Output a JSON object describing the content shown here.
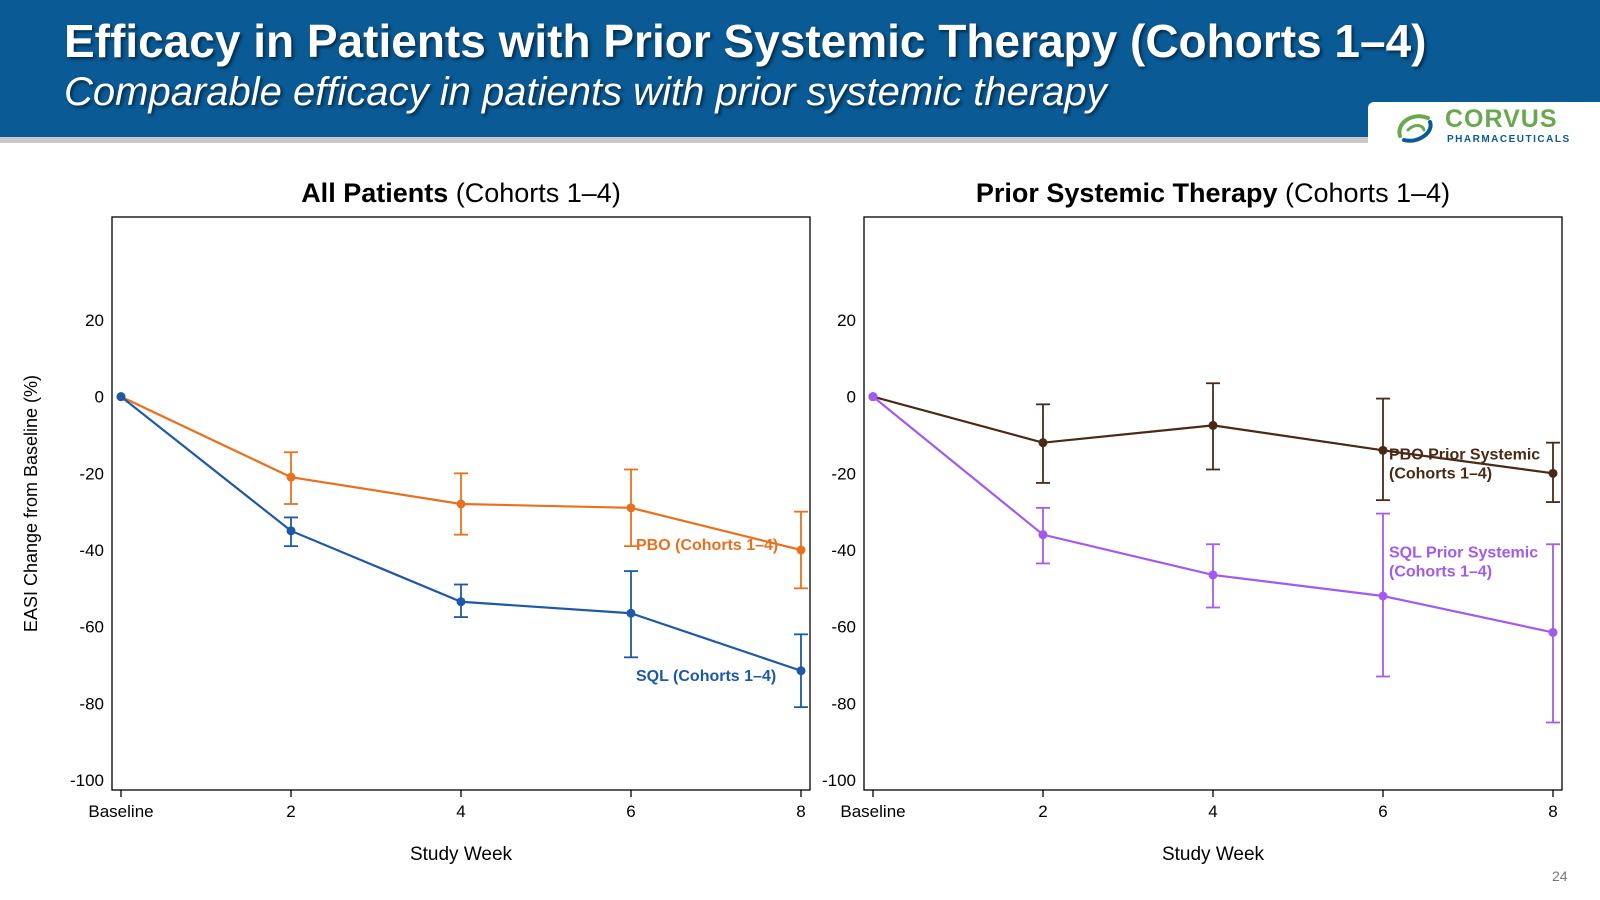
{
  "slide": {
    "title": "Efficacy in Patients with Prior Systemic Therapy (Cohorts 1–4)",
    "subtitle": "Comparable efficacy in patients with prior systemic therapy",
    "page_number": "24"
  },
  "logo": {
    "name": "CORVUS",
    "tagline": "PHARMACEUTICALS",
    "icon": "corvus-swirl-icon"
  },
  "chart_data": [
    {
      "type": "line",
      "title_bold": "All Patients",
      "title_rest": " (Cohorts 1–4)",
      "xlabel": "Study Week",
      "ylabel": "EASI Change from Baseline (%)",
      "categories": [
        "Baseline",
        "2",
        "4",
        "6",
        "8"
      ],
      "x": [
        0,
        2,
        4,
        6,
        8
      ],
      "ylim": [
        -100,
        20
      ],
      "yticks": [
        20,
        0,
        -20,
        -40,
        -60,
        -80,
        -100
      ],
      "grid": false,
      "series": [
        {
          "name": "PBO (Cohorts 1–4)",
          "color": "#e8711f",
          "values": [
            0,
            -21,
            -28,
            -29,
            -40
          ],
          "error_low": [
            0,
            -28,
            -36,
            -39,
            -50
          ],
          "error_high": [
            0,
            -14.5,
            -20,
            -19,
            -30
          ]
        },
        {
          "name": "SQL (Cohorts 1–4)",
          "color": "#1d59a6",
          "values": [
            0,
            -35,
            -53.5,
            -56.5,
            -71.5
          ],
          "error_low": [
            0,
            -39,
            -57.5,
            -68,
            -81
          ],
          "error_high": [
            0,
            -31.5,
            -49,
            -45.5,
            -62
          ]
        }
      ]
    },
    {
      "type": "line",
      "title_bold": "Prior Systemic Therapy",
      "title_rest": " (Cohorts 1–4)",
      "xlabel": "Study Week",
      "ylabel": "",
      "categories": [
        "Baseline",
        "2",
        "4",
        "6",
        "8"
      ],
      "x": [
        0,
        2,
        4,
        6,
        8
      ],
      "ylim": [
        -100,
        20
      ],
      "yticks": [
        20,
        0,
        -20,
        -40,
        -60,
        -80,
        -100
      ],
      "grid": false,
      "series": [
        {
          "name": "PBO Prior Systemic (Cohorts 1–4)",
          "label_lines": [
            "PBO Prior Systemic",
            "(Cohorts 1–4)"
          ],
          "color": "#4a2a14",
          "values": [
            0,
            -12,
            -7.5,
            -14,
            -20
          ],
          "error_low": [
            0,
            -22.5,
            -19,
            -27,
            -27.5
          ],
          "error_high": [
            0,
            -2,
            3.5,
            -0.5,
            -12
          ]
        },
        {
          "name": "SQL Prior Systemic (Cohorts 1–4)",
          "label_lines": [
            "SQL Prior Systemic",
            "(Cohorts 1–4)"
          ],
          "color": "#a25af0",
          "values": [
            0,
            -36,
            -46.5,
            -52,
            -61.5
          ],
          "error_low": [
            0,
            -43.5,
            -55,
            -73,
            -85
          ],
          "error_high": [
            0,
            -29,
            -38.5,
            -30.5,
            -38.5
          ]
        }
      ]
    }
  ]
}
